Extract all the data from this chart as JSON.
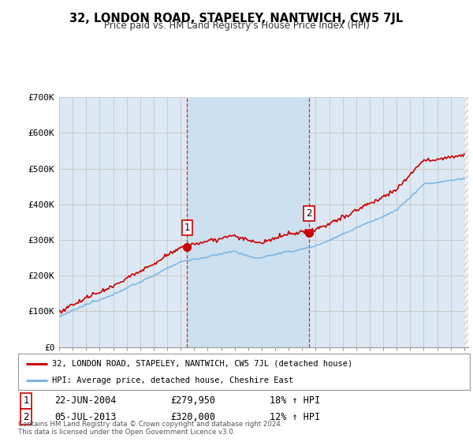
{
  "title": "32, LONDON ROAD, STAPELEY, NANTWICH, CW5 7JL",
  "subtitle": "Price paid vs. HM Land Registry's House Price Index (HPI)",
  "bg_color": "#ffffff",
  "plot_bg_color": "#dce9f5",
  "plot_bg_color_between": "#cce0f0",
  "grid_color": "#cccccc",
  "hpi_line_color": "#7ab4e0",
  "price_line_color": "#cc0000",
  "sale1_date_x": 2004.47,
  "sale1_price": 279950,
  "sale2_date_x": 2013.51,
  "sale2_price": 320000,
  "ylabel_ticks": [
    "£0",
    "£100K",
    "£200K",
    "£300K",
    "£400K",
    "£500K",
    "£600K",
    "£700K"
  ],
  "ytick_vals": [
    0,
    100000,
    200000,
    300000,
    400000,
    500000,
    600000,
    700000
  ],
  "xmin": 1995,
  "xmax": 2025,
  "ymin": 0,
  "ymax": 700000,
  "legend_label1": "32, LONDON ROAD, STAPELEY, NANTWICH, CW5 7JL (detached house)",
  "legend_label2": "HPI: Average price, detached house, Cheshire East",
  "footnote1_label": "1",
  "footnote1_date": "22-JUN-2004",
  "footnote1_price": "£279,950",
  "footnote1_hpi": "18% ↑ HPI",
  "footnote2_label": "2",
  "footnote2_date": "05-JUL-2013",
  "footnote2_price": "£320,000",
  "footnote2_hpi": "12% ↑ HPI",
  "copyright_text": "Contains HM Land Registry data © Crown copyright and database right 2024.\nThis data is licensed under the Open Government Licence v3.0."
}
